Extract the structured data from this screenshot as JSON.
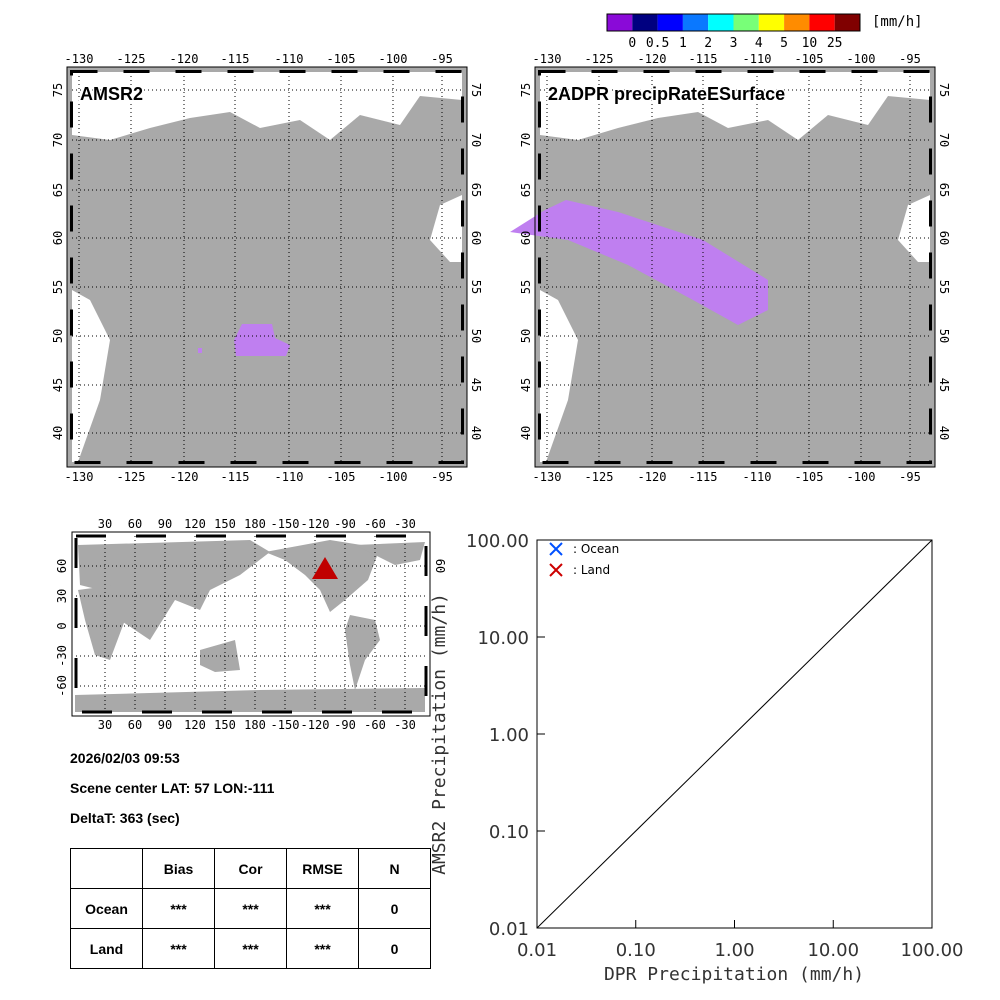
{
  "colorbar": {
    "unit": "[mm/h]",
    "labels": [
      "0",
      "0.5",
      "1",
      "2",
      "3",
      "4",
      "5",
      "10",
      "25"
    ],
    "colors": [
      "#8a0ad8",
      "#000080",
      "#0000ff",
      "#0a78ff",
      "#00ffff",
      "#78ff78",
      "#ffff00",
      "#ff8c00",
      "#ff0000",
      "#800000"
    ]
  },
  "maps": [
    {
      "title": "AMSR2"
    },
    {
      "title": "2ADPR precipRateESurface"
    }
  ],
  "map_lon_ticks": [
    "-130",
    "-125",
    "-120",
    "-115",
    "-110",
    "-105",
    "-100",
    "-95"
  ],
  "map_lat_ticks": [
    "75",
    "70",
    "65",
    "60",
    "55",
    "50",
    "45",
    "40"
  ],
  "world_lon_ticks": [
    "30",
    "60",
    "90",
    "120",
    "150",
    "180",
    "-150",
    "-120",
    "-90",
    "-60",
    "-30"
  ],
  "world_lat_ticks": [
    "60",
    "30",
    "0",
    "-30",
    "-60"
  ],
  "info": {
    "datetime": "2026/02/03 09:53",
    "scene_center": "Scene center LAT: 57   LON:-111",
    "deltat": "DeltaT:  363 (sec)"
  },
  "table": {
    "headers": [
      "",
      "Bias",
      "Cor",
      "RMSE",
      "N"
    ],
    "rows": [
      [
        "Ocean",
        "***",
        "***",
        "***",
        "0"
      ],
      [
        "Land",
        "***",
        "***",
        "***",
        "0"
      ]
    ]
  },
  "chart_data": {
    "type": "scatter",
    "xlabel": "DPR Precipitation (mm/h)",
    "ylabel": "AMSR2 Precipitation (mm/h)",
    "xscale": "log",
    "yscale": "log",
    "xlim": [
      0.01,
      100
    ],
    "ylim": [
      0.01,
      100
    ],
    "x_ticks": [
      "0.01",
      "0.10",
      "1.00",
      "10.00",
      "100.00"
    ],
    "y_ticks": [
      "0.01",
      "0.10",
      "1.00",
      "10.00",
      "100.00"
    ],
    "legend": [
      {
        "label": ": Ocean",
        "color": "#0050ff",
        "marker": "x"
      },
      {
        "label": ": Land",
        "color": "#cc0000",
        "marker": "x"
      }
    ],
    "legend_placement": "top-left",
    "series": [
      {
        "name": "Ocean",
        "points": []
      },
      {
        "name": "Land",
        "points": []
      }
    ],
    "reference_line": "y=x"
  }
}
